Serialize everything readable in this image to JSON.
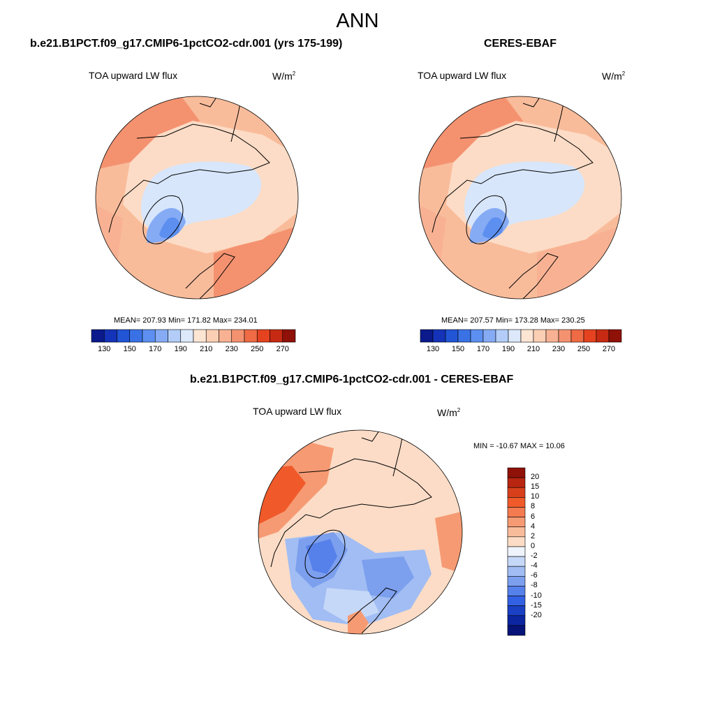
{
  "title": "ANN",
  "panels": [
    {
      "id": "model",
      "title": "b.e21.B1PCT.f09_g17.CMIP6-1pctCO2-cdr.001 (yrs 175-199)",
      "variable": "TOA upward LW flux",
      "units_base": "W/m",
      "units_exp": "2",
      "stats": "MEAN= 207.93  Min= 171.82  Max= 234.01"
    },
    {
      "id": "obs",
      "title": "CERES-EBAF",
      "variable": "TOA upward LW flux",
      "units_base": "W/m",
      "units_exp": "2",
      "stats": "MEAN= 207.57  Min= 173.28  Max= 230.25"
    },
    {
      "id": "diff",
      "title": "b.e21.B1PCT.f09_g17.CMIP6-1pctCO2-cdr.001 - CERES-EBAF",
      "variable": "TOA upward LW flux",
      "units_base": "W/m",
      "units_exp": "2",
      "stats": "MIN = -10.67 MAX =  10.06"
    }
  ],
  "colorbar_abs": {
    "colors": [
      "#0a1a8c",
      "#1433b8",
      "#2155d6",
      "#3a72e6",
      "#5c8ff0",
      "#86abf5",
      "#b3cdf8",
      "#dde9fb",
      "#fde5d3",
      "#fbcfb4",
      "#f8b293",
      "#f49270",
      "#ee6b45",
      "#e5431f",
      "#c72a12",
      "#8f1108"
    ],
    "tick_labels": [
      "130",
      "150",
      "170",
      "190",
      "210",
      "230",
      "250",
      "270"
    ]
  },
  "colorbar_diff": {
    "colors": [
      "#8f1108",
      "#b82510",
      "#d8401c",
      "#f05a2a",
      "#f47a50",
      "#f69a73",
      "#f9bc9b",
      "#fcdcc6",
      "#eef3fc",
      "#c6d8f8",
      "#a1bdf3",
      "#7c9fee",
      "#5680ea",
      "#3361e3",
      "#1a40c4",
      "#0c25a0",
      "#061479"
    ],
    "tick_labels": [
      "20",
      "15",
      "10",
      "8",
      "6",
      "4",
      "2",
      "0",
      "-2",
      "-4",
      "-6",
      "-8",
      "-10",
      "-15",
      "-20"
    ]
  }
}
